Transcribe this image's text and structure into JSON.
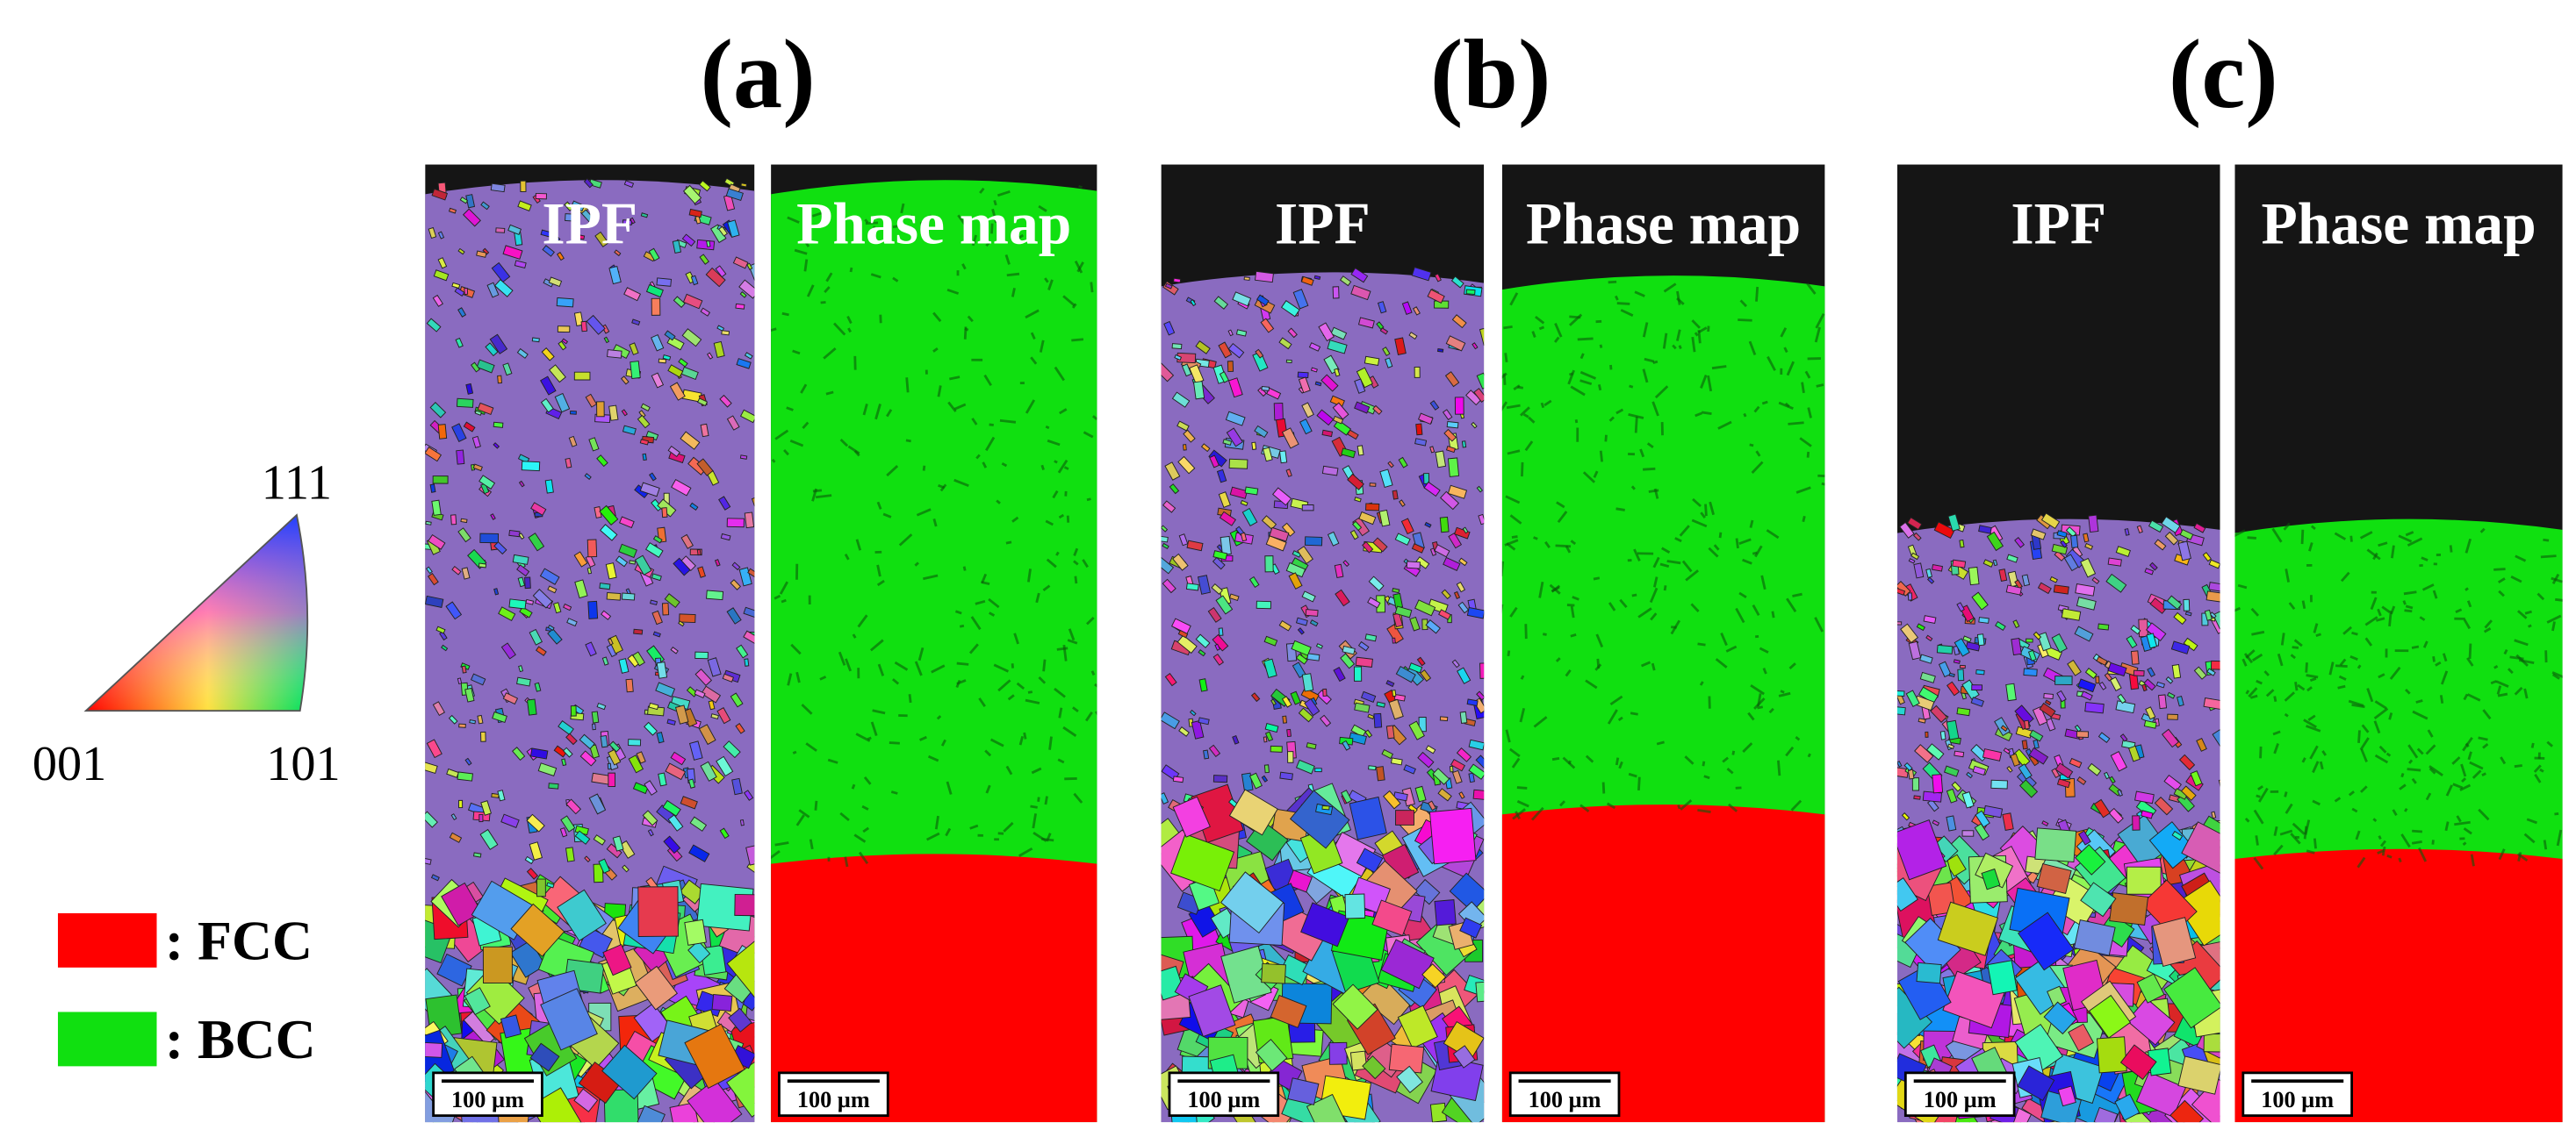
{
  "legend": {
    "ipf_corners": {
      "top": "111",
      "left": "001",
      "right": "101"
    },
    "phases": [
      {
        "label": ": FCC",
        "color": "#ff0000"
      },
      {
        "label": ": BCC",
        "color": "#10e010"
      }
    ]
  },
  "panels": [
    {
      "label": "(a)",
      "maps": [
        {
          "title": "IPF",
          "scale_bar": "100 µm"
        },
        {
          "title": "Phase map",
          "scale_bar": "100 µm"
        }
      ]
    },
    {
      "label": "(b)",
      "maps": [
        {
          "title": "IPF",
          "scale_bar": "100 µm"
        },
        {
          "title": "Phase map",
          "scale_bar": "100 µm"
        }
      ]
    },
    {
      "label": "(c)",
      "maps": [
        {
          "title": "IPF",
          "scale_bar": "100 µm"
        },
        {
          "title": "Phase map",
          "scale_bar": "100 µm"
        }
      ]
    }
  ]
}
